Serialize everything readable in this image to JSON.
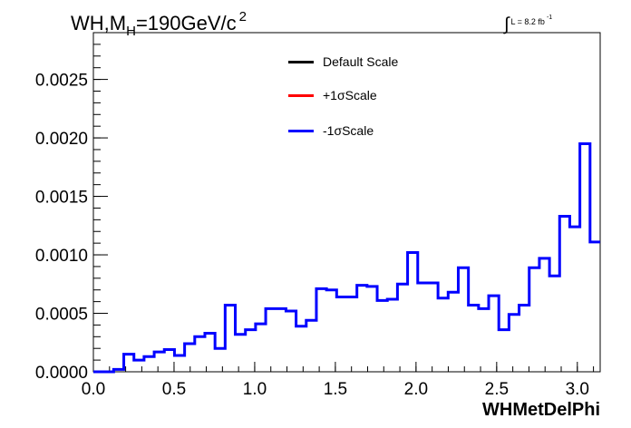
{
  "title": {
    "prefix": "WH,M",
    "subscript": "H",
    "middle": "=190GeV/c",
    "superscript": "2"
  },
  "luminosity": {
    "integral": "∫",
    "text": "L = 8.2 fb",
    "exponent": "-1"
  },
  "legend": {
    "placement": "top-center",
    "entries": [
      {
        "label": "Default Scale",
        "color": "#000000"
      },
      {
        "label": "+1σScale",
        "color": "#ff0000"
      },
      {
        "label": "-1σScale",
        "color": "#0000ff"
      }
    ]
  },
  "chart_data": {
    "type": "histogram",
    "title": "WH,MH=190GeV/c2",
    "xlabel": "WHMetDelPhi",
    "ylabel": "",
    "xlim": [
      0.0,
      3.1416
    ],
    "ylim": [
      0.0,
      0.0029
    ],
    "grid": false,
    "x_ticks": [
      "0.0",
      "0.5",
      "1.0",
      "1.5",
      "2.0",
      "2.5",
      "3.0"
    ],
    "x_tick_values": [
      0.0,
      0.5,
      1.0,
      1.5,
      2.0,
      2.5,
      3.0
    ],
    "y_ticks": [
      "0.0000",
      "0.0005",
      "0.0010",
      "0.0015",
      "0.0020",
      "0.0025"
    ],
    "y_tick_values": [
      0.0,
      0.0005,
      0.001,
      0.0015,
      0.002,
      0.0025
    ],
    "bin_edges_range": [
      0.0,
      3.1416
    ],
    "n_bins": 50,
    "series": [
      {
        "name": "-1σScale",
        "color": "#0000ff",
        "values": [
          0.0,
          0.0,
          2e-05,
          0.00015,
          0.0001,
          0.00013,
          0.00017,
          0.00019,
          0.00014,
          0.00024,
          0.0003,
          0.00033,
          0.0002,
          0.00057,
          0.00032,
          0.00036,
          0.00041,
          0.00054,
          0.00054,
          0.00052,
          0.00039,
          0.00044,
          0.00071,
          0.0007,
          0.00064,
          0.00064,
          0.00074,
          0.00073,
          0.00061,
          0.00062,
          0.00075,
          0.00102,
          0.00076,
          0.00076,
          0.00063,
          0.00068,
          0.00089,
          0.00057,
          0.00054,
          0.00065,
          0.00036,
          0.00049,
          0.00057,
          0.00089,
          0.00097,
          0.00082,
          0.00133,
          0.00124,
          0.00195,
          0.00111
        ]
      }
    ]
  }
}
